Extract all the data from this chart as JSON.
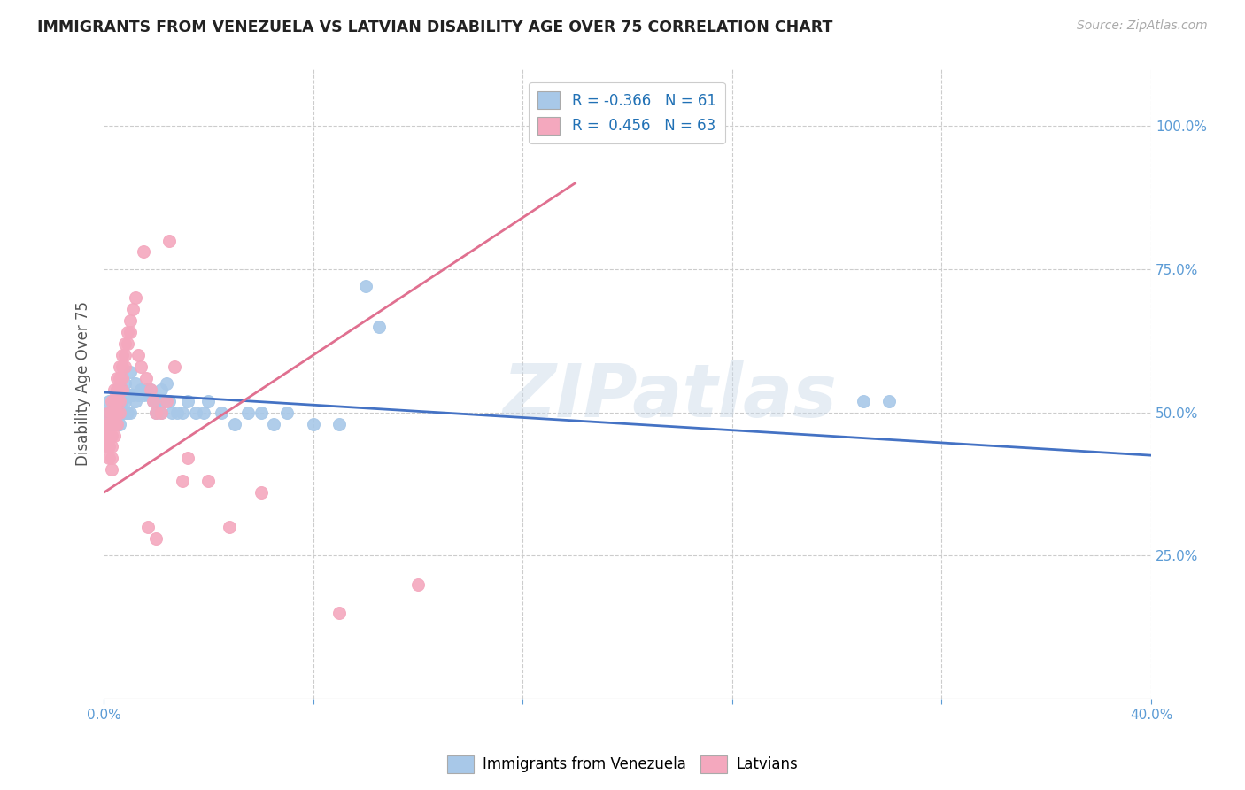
{
  "title": "IMMIGRANTS FROM VENEZUELA VS LATVIAN DISABILITY AGE OVER 75 CORRELATION CHART",
  "source": "Source: ZipAtlas.com",
  "ylabel": "Disability Age Over 75",
  "xlim": [
    0.0,
    0.4
  ],
  "ylim": [
    0.0,
    1.1
  ],
  "x_tick_positions": [
    0.0,
    0.08,
    0.16,
    0.24,
    0.32,
    0.4
  ],
  "x_tick_labels": [
    "0.0%",
    "",
    "",
    "",
    "",
    "40.0%"
  ],
  "y_tick_positions": [
    0.0,
    0.25,
    0.5,
    0.75,
    1.0
  ],
  "y_tick_labels_right": [
    "",
    "25.0%",
    "50.0%",
    "75.0%",
    "100.0%"
  ],
  "blue_color": "#a8c8e8",
  "pink_color": "#f4a8be",
  "blue_line_color": "#4472c4",
  "pink_line_color": "#e07090",
  "legend_r_blue": "-0.366",
  "legend_n_blue": "61",
  "legend_r_pink": "0.456",
  "legend_n_pink": "63",
  "watermark": "ZIPatlas",
  "blue_scatter": [
    [
      0.001,
      0.5
    ],
    [
      0.002,
      0.5
    ],
    [
      0.002,
      0.52
    ],
    [
      0.003,
      0.5
    ],
    [
      0.003,
      0.48
    ],
    [
      0.004,
      0.52
    ],
    [
      0.004,
      0.5
    ],
    [
      0.004,
      0.48
    ],
    [
      0.005,
      0.54
    ],
    [
      0.005,
      0.5
    ],
    [
      0.005,
      0.48
    ],
    [
      0.006,
      0.52
    ],
    [
      0.006,
      0.5
    ],
    [
      0.006,
      0.48
    ],
    [
      0.007,
      0.54
    ],
    [
      0.007,
      0.52
    ],
    [
      0.007,
      0.5
    ],
    [
      0.008,
      0.55
    ],
    [
      0.008,
      0.52
    ],
    [
      0.008,
      0.5
    ],
    [
      0.009,
      0.53
    ],
    [
      0.009,
      0.5
    ],
    [
      0.01,
      0.57
    ],
    [
      0.01,
      0.53
    ],
    [
      0.01,
      0.5
    ],
    [
      0.011,
      0.53
    ],
    [
      0.012,
      0.55
    ],
    [
      0.012,
      0.52
    ],
    [
      0.013,
      0.53
    ],
    [
      0.014,
      0.54
    ],
    [
      0.015,
      0.53
    ],
    [
      0.016,
      0.54
    ],
    [
      0.017,
      0.53
    ],
    [
      0.018,
      0.54
    ],
    [
      0.019,
      0.52
    ],
    [
      0.02,
      0.52
    ],
    [
      0.02,
      0.5
    ],
    [
      0.022,
      0.54
    ],
    [
      0.022,
      0.5
    ],
    [
      0.023,
      0.52
    ],
    [
      0.024,
      0.55
    ],
    [
      0.025,
      0.52
    ],
    [
      0.026,
      0.5
    ],
    [
      0.028,
      0.5
    ],
    [
      0.03,
      0.5
    ],
    [
      0.032,
      0.52
    ],
    [
      0.035,
      0.5
    ],
    [
      0.038,
      0.5
    ],
    [
      0.04,
      0.52
    ],
    [
      0.045,
      0.5
    ],
    [
      0.05,
      0.48
    ],
    [
      0.055,
      0.5
    ],
    [
      0.06,
      0.5
    ],
    [
      0.065,
      0.48
    ],
    [
      0.07,
      0.5
    ],
    [
      0.08,
      0.48
    ],
    [
      0.09,
      0.48
    ],
    [
      0.1,
      0.72
    ],
    [
      0.105,
      0.65
    ],
    [
      0.29,
      0.52
    ],
    [
      0.3,
      0.52
    ]
  ],
  "pink_scatter": [
    [
      0.001,
      0.48
    ],
    [
      0.001,
      0.46
    ],
    [
      0.001,
      0.44
    ],
    [
      0.002,
      0.5
    ],
    [
      0.002,
      0.48
    ],
    [
      0.002,
      0.46
    ],
    [
      0.002,
      0.44
    ],
    [
      0.002,
      0.42
    ],
    [
      0.003,
      0.52
    ],
    [
      0.003,
      0.5
    ],
    [
      0.003,
      0.48
    ],
    [
      0.003,
      0.46
    ],
    [
      0.003,
      0.44
    ],
    [
      0.003,
      0.42
    ],
    [
      0.003,
      0.4
    ],
    [
      0.004,
      0.54
    ],
    [
      0.004,
      0.52
    ],
    [
      0.004,
      0.5
    ],
    [
      0.004,
      0.48
    ],
    [
      0.004,
      0.46
    ],
    [
      0.005,
      0.56
    ],
    [
      0.005,
      0.54
    ],
    [
      0.005,
      0.52
    ],
    [
      0.005,
      0.5
    ],
    [
      0.005,
      0.48
    ],
    [
      0.006,
      0.58
    ],
    [
      0.006,
      0.56
    ],
    [
      0.006,
      0.54
    ],
    [
      0.006,
      0.52
    ],
    [
      0.006,
      0.5
    ],
    [
      0.007,
      0.6
    ],
    [
      0.007,
      0.58
    ],
    [
      0.007,
      0.56
    ],
    [
      0.007,
      0.54
    ],
    [
      0.008,
      0.62
    ],
    [
      0.008,
      0.6
    ],
    [
      0.008,
      0.58
    ],
    [
      0.009,
      0.64
    ],
    [
      0.009,
      0.62
    ],
    [
      0.01,
      0.66
    ],
    [
      0.01,
      0.64
    ],
    [
      0.011,
      0.68
    ],
    [
      0.012,
      0.7
    ],
    [
      0.013,
      0.6
    ],
    [
      0.014,
      0.58
    ],
    [
      0.015,
      0.78
    ],
    [
      0.016,
      0.56
    ],
    [
      0.017,
      0.3
    ],
    [
      0.018,
      0.54
    ],
    [
      0.019,
      0.52
    ],
    [
      0.02,
      0.5
    ],
    [
      0.02,
      0.28
    ],
    [
      0.022,
      0.5
    ],
    [
      0.024,
      0.52
    ],
    [
      0.025,
      0.8
    ],
    [
      0.027,
      0.58
    ],
    [
      0.03,
      0.38
    ],
    [
      0.032,
      0.42
    ],
    [
      0.04,
      0.38
    ],
    [
      0.048,
      0.3
    ],
    [
      0.06,
      0.36
    ],
    [
      0.09,
      0.15
    ],
    [
      0.12,
      0.2
    ]
  ],
  "pink_line_x": [
    0.0,
    0.18
  ],
  "pink_line_y": [
    0.36,
    0.9
  ]
}
